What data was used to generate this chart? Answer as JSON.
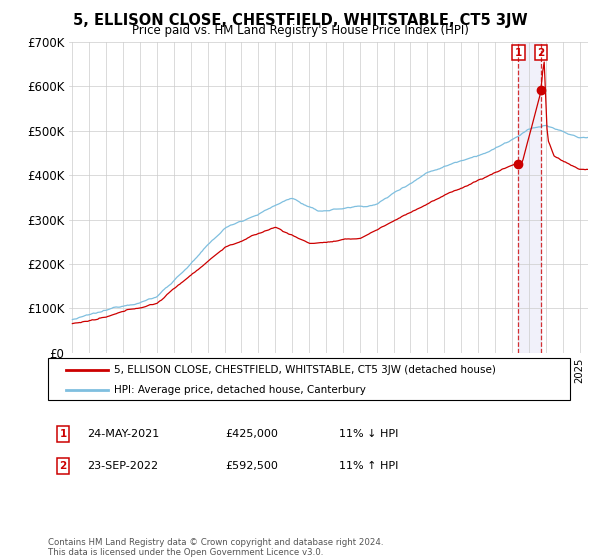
{
  "title": "5, ELLISON CLOSE, CHESTFIELD, WHITSTABLE, CT5 3JW",
  "subtitle": "Price paid vs. HM Land Registry's House Price Index (HPI)",
  "ylim": [
    0,
    700000
  ],
  "yticks": [
    0,
    100000,
    200000,
    300000,
    400000,
    500000,
    600000,
    700000
  ],
  "ytick_labels": [
    "£0",
    "£100K",
    "£200K",
    "£300K",
    "£400K",
    "£500K",
    "£600K",
    "£700K"
  ],
  "xlim_min": 1995,
  "xlim_max": 2025.5,
  "hpi_color": "#7fbfdf",
  "price_color": "#cc0000",
  "marker_color": "#cc0000",
  "sale1_year": 2021.38,
  "sale1_price": 425000,
  "sale2_year": 2022.72,
  "sale2_price": 592500,
  "legend_line1": "5, ELLISON CLOSE, CHESTFIELD, WHITSTABLE, CT5 3JW (detached house)",
  "legend_line2": "HPI: Average price, detached house, Canterbury",
  "sale1_date": "24-MAY-2021",
  "sale1_price_str": "£425,000",
  "sale1_pct": "11% ↓ HPI",
  "sale2_date": "23-SEP-2022",
  "sale2_price_str": "£592,500",
  "sale2_pct": "11% ↑ HPI",
  "footer": "Contains HM Land Registry data © Crown copyright and database right 2024.\nThis data is licensed under the Open Government Licence v3.0.",
  "bg_color": "#ffffff",
  "grid_color": "#cccccc"
}
